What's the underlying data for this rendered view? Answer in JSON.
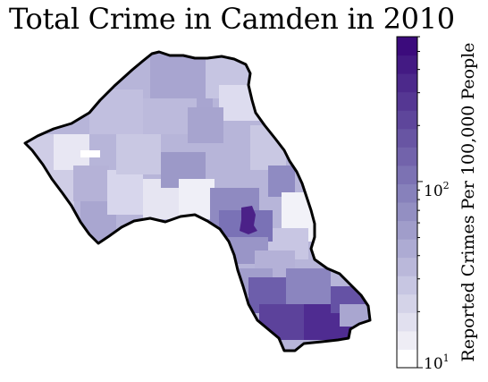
{
  "title": "Total Crime in Camden in 2010",
  "colorbar": {
    "label": "Reported Crimes Per 100,000 People",
    "scale": "log",
    "range": [
      10,
      600
    ],
    "ticks": [
      {
        "base": "10",
        "exp": "1",
        "value": 10
      },
      {
        "base": "10",
        "exp": "2",
        "value": 100
      }
    ],
    "colors": [
      "#ffffff",
      "#eeedf5",
      "#e1e0ef",
      "#d4d3e8",
      "#c7c6e2",
      "#bab8da",
      "#adabd3",
      "#a09dca",
      "#938fc2",
      "#8781bb",
      "#7c72b3",
      "#7263ab",
      "#6855a3",
      "#5e469b",
      "#553793",
      "#4c298b",
      "#431a83",
      "#3b0b7c"
    ],
    "color_low": "#ffffff",
    "color_high": "#3f007d"
  },
  "map": {
    "region": "Camden",
    "year": "2010",
    "cmap": "Purples",
    "base_color": "#b5b3d8",
    "hotspots": [
      {
        "area": "north",
        "level": "low-medium"
      },
      {
        "area": "central",
        "level": "medium-high"
      },
      {
        "area": "south",
        "level": "high"
      }
    ]
  }
}
